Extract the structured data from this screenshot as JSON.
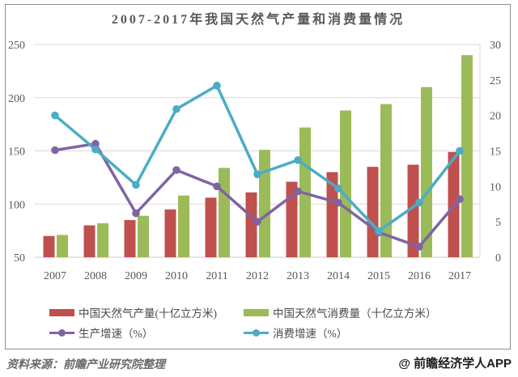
{
  "chart_data": {
    "type": "combo-bar-line",
    "title": "2007-2017年我国天然气产量和消费量情况",
    "categories": [
      "2007",
      "2008",
      "2009",
      "2010",
      "2011",
      "2012",
      "2013",
      "2014",
      "2015",
      "2016",
      "2017"
    ],
    "series": [
      {
        "key": "production",
        "name": "中国天然气产量(十亿立方米)",
        "type": "bar",
        "axis": "left",
        "color": "#c0504d",
        "values": [
          70,
          80,
          85,
          95,
          106,
          111,
          121,
          130,
          135,
          137,
          149
        ]
      },
      {
        "key": "consumption",
        "name": "中国天然气消费量（十亿立方米）",
        "type": "bar",
        "axis": "left",
        "color": "#9bbb59",
        "values": [
          71,
          82,
          89,
          108,
          134,
          151,
          172,
          188,
          194,
          210,
          240
        ]
      },
      {
        "key": "production-growth",
        "name": "生产增速（%）",
        "type": "line",
        "axis": "right",
        "color": "#8064a2",
        "values": [
          15.1,
          16.0,
          6.2,
          12.3,
          10.0,
          5.0,
          9.3,
          7.7,
          3.5,
          1.5,
          8.2
        ]
      },
      {
        "key": "consumption-growth",
        "name": "消费增速（%）",
        "type": "line",
        "axis": "right",
        "color": "#4bacc6",
        "values": [
          20.0,
          15.2,
          10.2,
          20.9,
          24.2,
          11.7,
          13.7,
          9.7,
          3.7,
          7.7,
          15.0
        ]
      }
    ],
    "left_axis": {
      "min": 50,
      "max": 250,
      "ticks": [
        250,
        200,
        150,
        100,
        50
      ]
    },
    "right_axis": {
      "min": 0,
      "max": 30,
      "ticks": [
        30,
        25,
        20,
        15,
        10,
        5,
        0
      ]
    },
    "grid": true,
    "legend_position": "bottom"
  },
  "footer": {
    "source": "资料来源：前瞻产业研究院整理",
    "watermark": "@ 前瞻经济学人APP"
  },
  "colors": {
    "production_bar": "#c0504d",
    "consumption_bar": "#9bbb59",
    "production_growth_line": "#8064a2",
    "consumption_growth_line": "#4bacc6",
    "gridline": "#d9d9d9",
    "axis_line": "#c8c8c8",
    "tick_text": "#595959",
    "title_text": "#595959",
    "frame_border": "#8f8f8f"
  }
}
